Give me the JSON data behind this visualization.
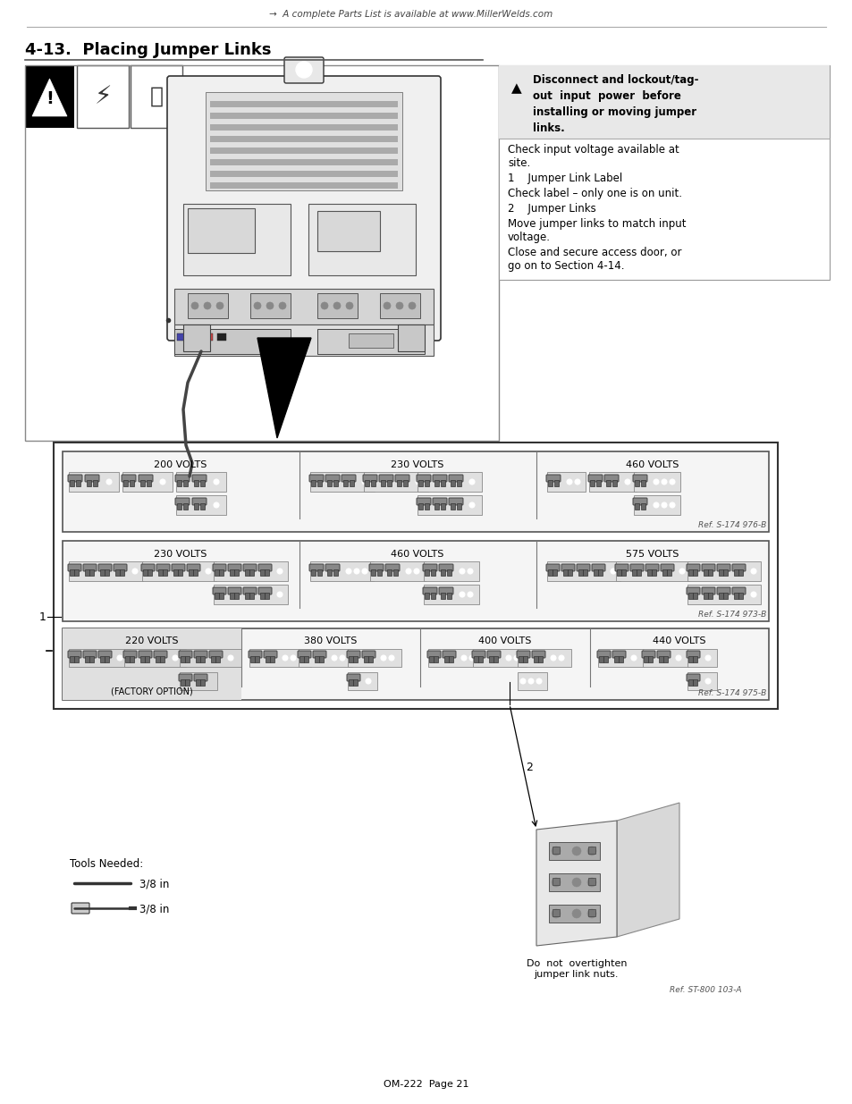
{
  "page_title": "4-13.  Placing Jumper Links",
  "header_text": "A complete Parts List is available at www.MillerWelds.com",
  "footer_text": "OM-222  Page 21",
  "warning_triangle": "▲",
  "warn_line1": "Disconnect and lockout/tag-",
  "warn_line2": "out  input  power  before",
  "warn_line3": "installing or moving jumper",
  "warn_line4": "links.",
  "text_check_input": "Check input voltage available at\nsite.",
  "text_item1": "1    Jumper Link Label",
  "text_check_label": "Check label – only one is on unit.",
  "text_item2": "2    Jumper Links",
  "text_move": "Move jumper links to match input\nvoltage.",
  "text_close": "Close and secure access door, or\ngo on to Section 4-14.",
  "label1_num": "1",
  "label2_num": "2",
  "tools_needed": "Tools Needed:",
  "tool1": "3/8 in",
  "tool2": "3/8 in",
  "ref1": "Ref. S-174 976-B",
  "ref2": "Ref. S-174 973-B",
  "ref3": "Ref. S-174 975-B",
  "ref4": "Ref. ST-800 103-A",
  "do_not_text": "Do  not  overtighten\njumper link nuts.",
  "factory_option": "(FACTORY OPTION)",
  "voltage_labels_row1": [
    "200 VOLTS",
    "230 VOLTS",
    "460 VOLTS"
  ],
  "voltage_labels_row2": [
    "230 VOLTS",
    "460 VOLTS",
    "575 VOLTS"
  ],
  "voltage_labels_row3": [
    "220 VOLTS",
    "380 VOLTS",
    "400 VOLTS",
    "440 VOLTS"
  ],
  "bg_color": "#ffffff",
  "text_color": "#000000"
}
